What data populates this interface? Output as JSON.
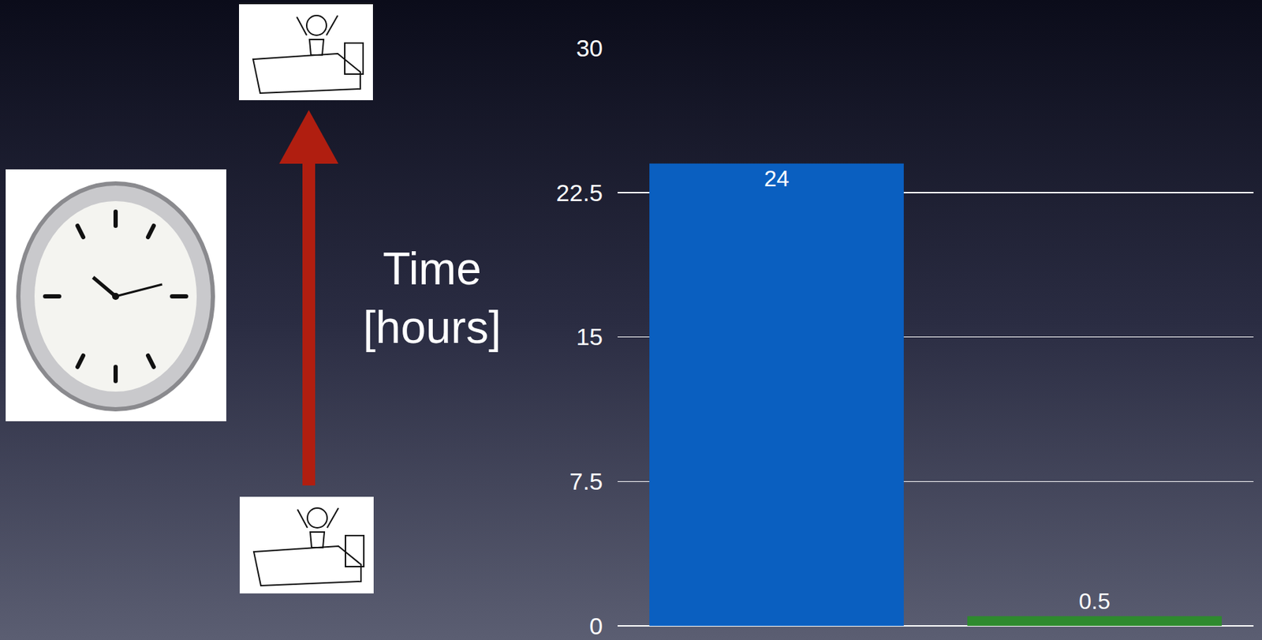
{
  "chart_data": {
    "type": "bar",
    "ylabel": "Time [hours]",
    "categories": [
      null,
      null
    ],
    "values": [
      24,
      0.5
    ],
    "colors": [
      "#0a5fc0",
      "#2e8a2e"
    ],
    "ylim": [
      0,
      30
    ],
    "yticks": [
      0,
      7.5,
      15,
      22.5,
      30
    ],
    "grid": true,
    "data_labels": true,
    "tick_labels": "y"
  }
}
